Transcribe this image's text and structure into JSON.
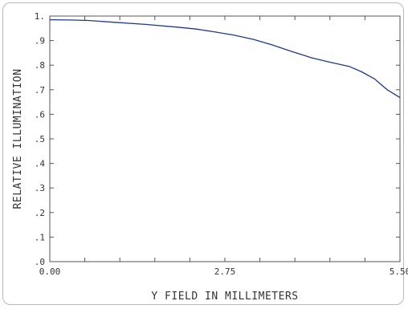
{
  "chart_data": {
    "type": "line",
    "title": "",
    "xlabel": "Y FIELD IN MILLIMETERS",
    "ylabel": "RELATIVE ILLUMINATION",
    "xlim": [
      0,
      5.5
    ],
    "ylim": [
      0,
      1
    ],
    "x_ticks": [
      0,
      2.75,
      5.5
    ],
    "x_tick_labels": [
      "0.00",
      "2.75",
      "5.50"
    ],
    "y_tick_labels": [
      ".0",
      ".1",
      ".2",
      ".3",
      ".4",
      ".5",
      ".6",
      ".7",
      ".8",
      ".9",
      "1."
    ],
    "grid": false,
    "series": [
      {
        "name": "",
        "color": "#1f3a8a",
        "x": [
          0.0,
          0.3,
          0.6,
          1.0,
          1.5,
          2.0,
          2.3,
          2.6,
          2.9,
          3.2,
          3.5,
          3.8,
          4.1,
          4.4,
          4.7,
          4.9,
          5.1,
          5.3,
          5.5
        ],
        "y": [
          0.985,
          0.984,
          0.982,
          0.975,
          0.966,
          0.955,
          0.947,
          0.935,
          0.922,
          0.905,
          0.882,
          0.856,
          0.831,
          0.812,
          0.795,
          0.773,
          0.744,
          0.7,
          0.668
        ]
      }
    ]
  }
}
